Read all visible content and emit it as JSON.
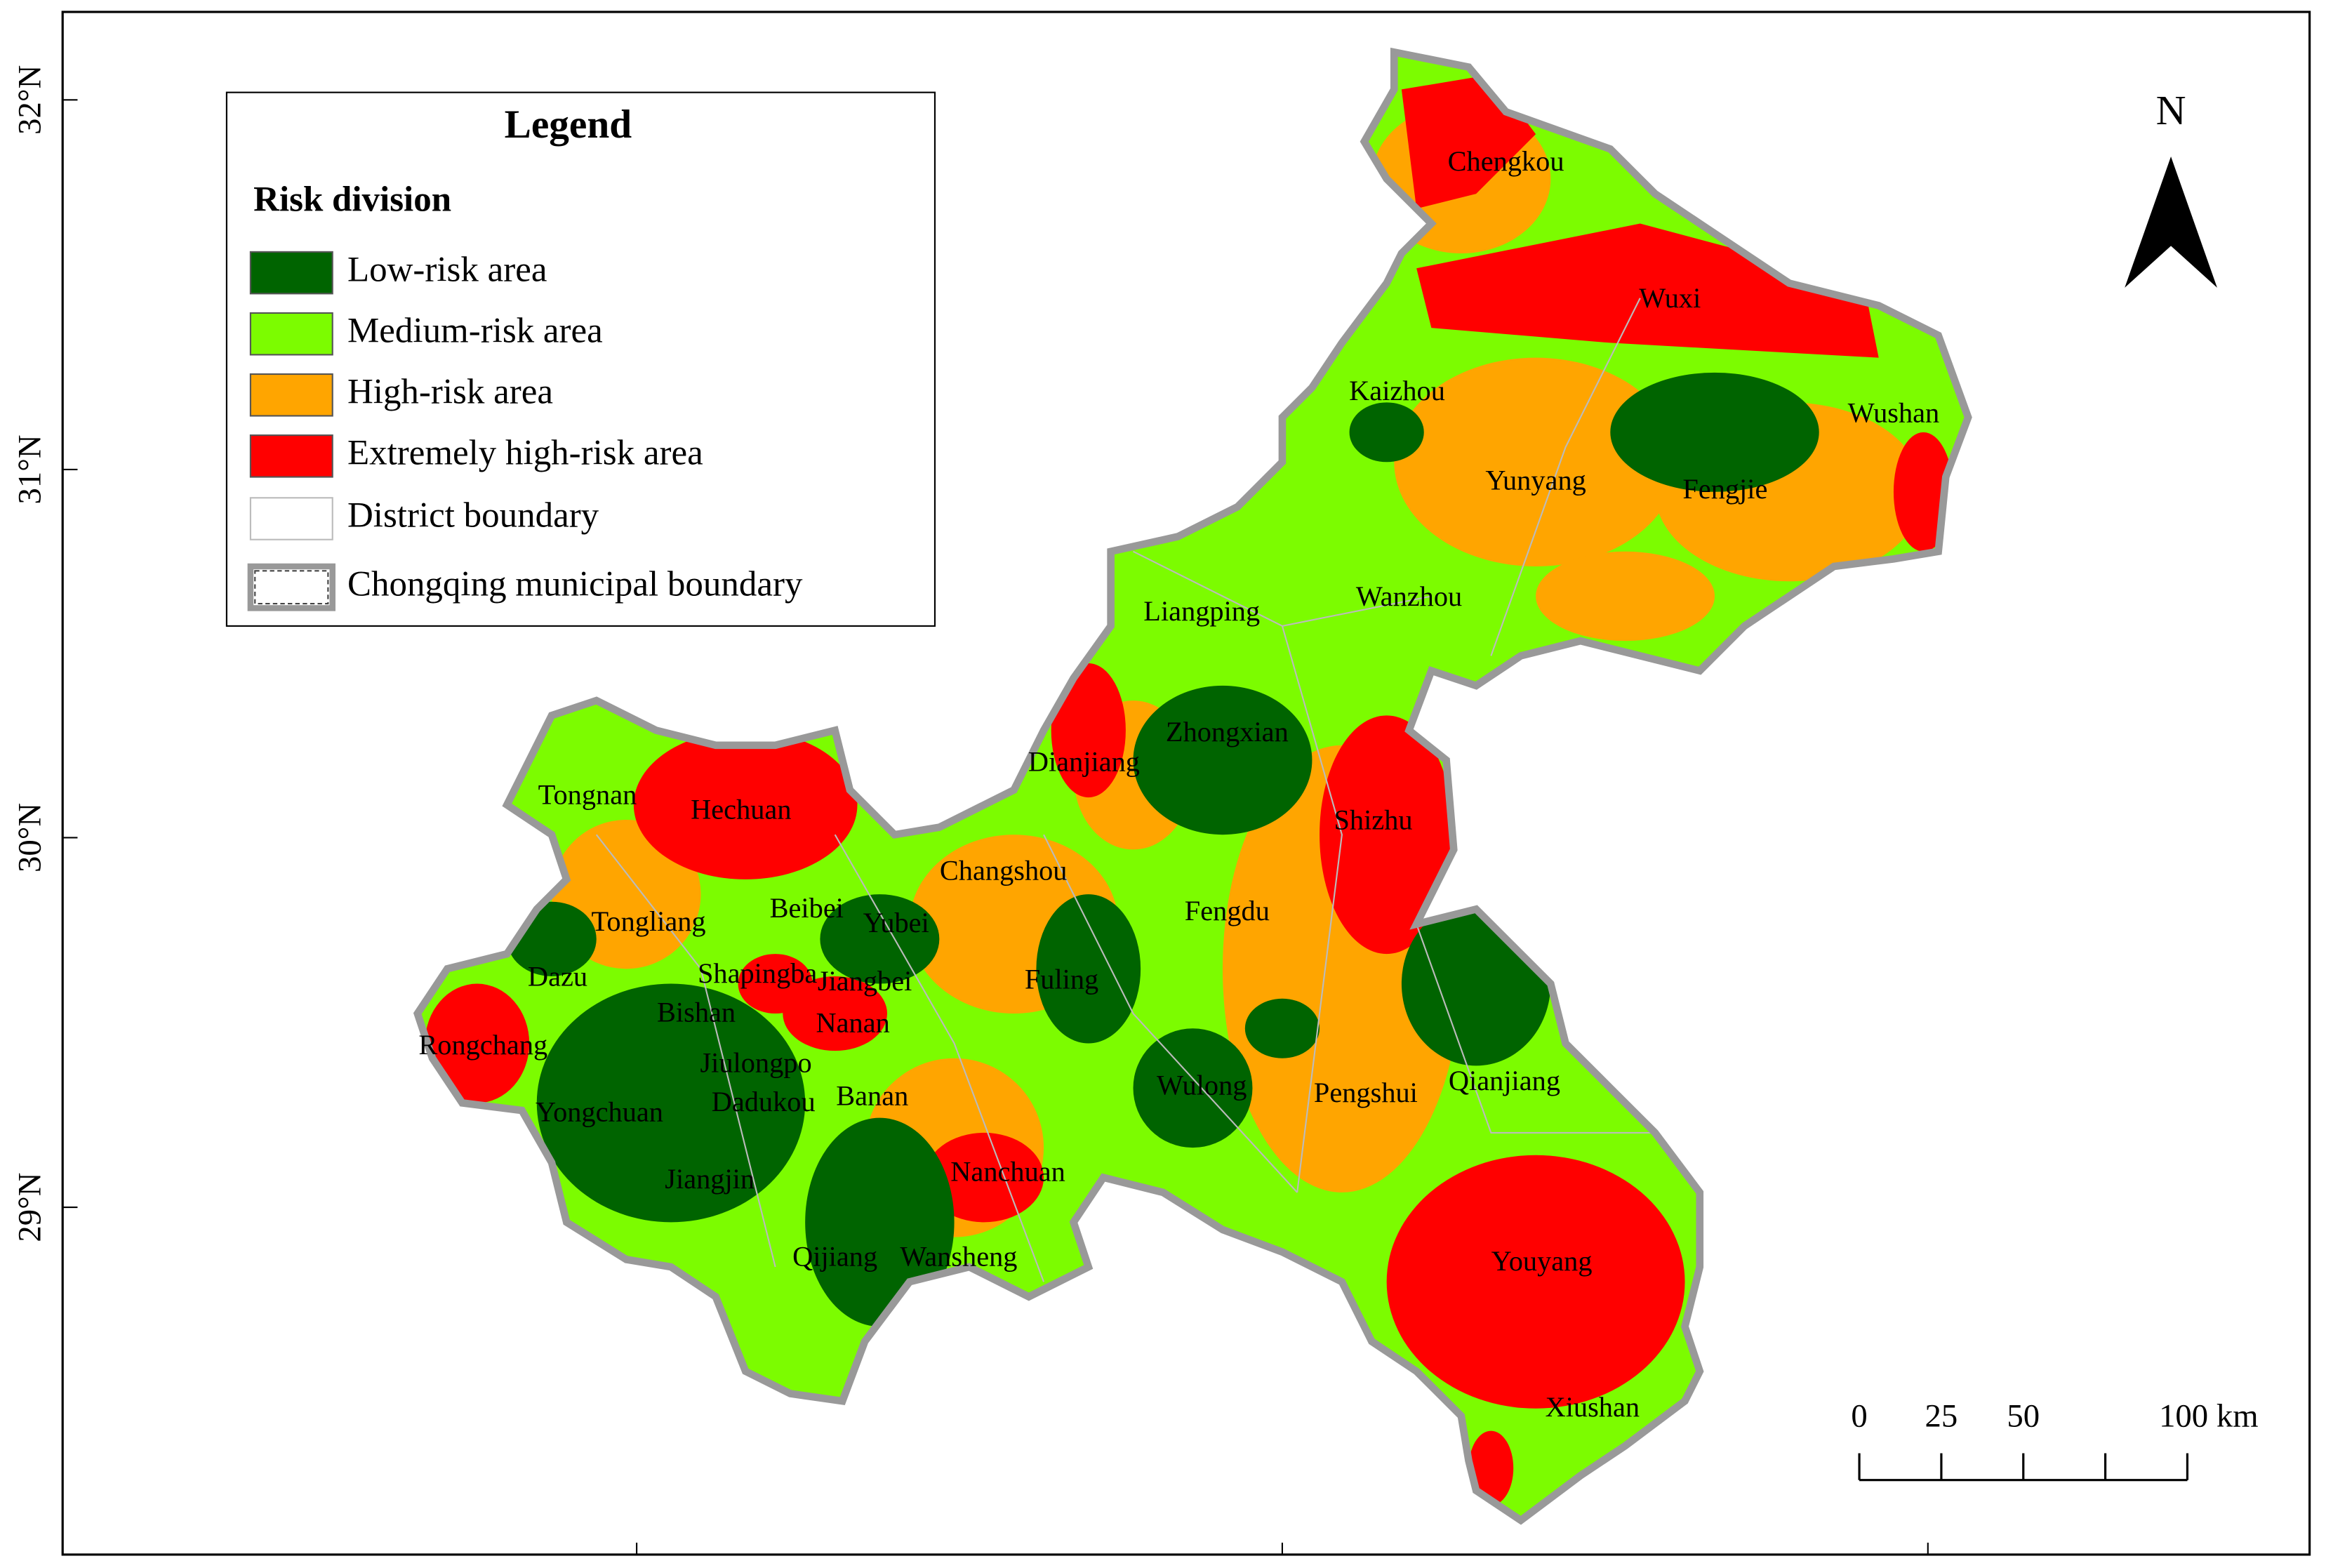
{
  "legend": {
    "title": "Legend",
    "subtitle": "Risk division",
    "items": [
      {
        "label": "Low-risk area",
        "color": "#006400"
      },
      {
        "label": "Medium-risk area",
        "color": "#7cfc00"
      },
      {
        "label": "High-risk area",
        "color": "#ffa500"
      },
      {
        "label": "Extremely high-risk area",
        "color": "#ff0000"
      },
      {
        "label": "District boundary"
      },
      {
        "label": "Chongqing municipal boundary"
      }
    ]
  },
  "north": "N",
  "scale_bar": [
    "0",
    "25",
    "50",
    "100 km"
  ],
  "lat_labels": [
    "32°N",
    "31°N",
    "30°N",
    "29°N"
  ],
  "districts": [
    "Chengkou",
    "Wuxi",
    "Kaizhou",
    "Wushan",
    "Yunyang",
    "Fengjie",
    "Wanzhou",
    "Liangping",
    "Zhongxian",
    "Dianjiang",
    "Shizhu",
    "Tongnan",
    "Hechuan",
    "Changshou",
    "Beibei",
    "Yubei",
    "Fengdu",
    "Tongliang",
    "Dazu",
    "Shapingba",
    "Jiangbei",
    "Fuling",
    "Bishan",
    "Nanan",
    "Rongchang",
    "Jiulongpo",
    "Wulong",
    "Pengshui",
    "Qianjiang",
    "Yongchuan",
    "Dadukou",
    "Banan",
    "Nanchuan",
    "Jiangjin",
    "Qijiang",
    "Wansheng",
    "Youyang",
    "Xiushan"
  ]
}
